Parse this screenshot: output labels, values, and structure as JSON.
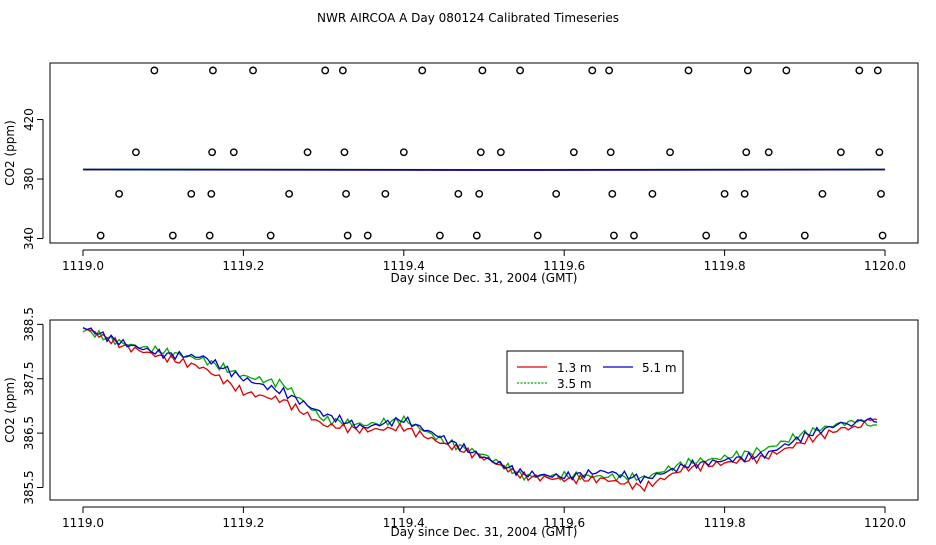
{
  "page_title": "NWR AIRCOA A  Day 080124  Calibrated Timeseries",
  "chart_data": [
    {
      "type": "scatter+line",
      "xlabel": "Day since Dec. 31, 2004 (GMT)",
      "ylabel": "CO2 (ppm)",
      "xlim": [
        1119.0,
        1120.0
      ],
      "xticks": [
        "1119.0",
        "1119.2",
        "1119.4",
        "1119.6",
        "1119.8",
        "1120.0"
      ],
      "yticks": [
        "340",
        "380",
        "420"
      ],
      "ylim": [
        337,
        458
      ],
      "points": [
        [
          1119.022,
          342
        ],
        [
          1119.045,
          370
        ],
        [
          1119.066,
          398
        ],
        [
          1119.089,
          453
        ],
        [
          1119.112,
          342
        ],
        [
          1119.135,
          370
        ],
        [
          1119.158,
          342
        ],
        [
          1119.16,
          370
        ],
        [
          1119.161,
          398
        ],
        [
          1119.162,
          453
        ],
        [
          1119.188,
          398
        ],
        [
          1119.212,
          453
        ],
        [
          1119.234,
          342
        ],
        [
          1119.257,
          370
        ],
        [
          1119.28,
          398
        ],
        [
          1119.302,
          453
        ],
        [
          1119.324,
          453
        ],
        [
          1119.326,
          398
        ],
        [
          1119.328,
          370
        ],
        [
          1119.33,
          342
        ],
        [
          1119.355,
          342
        ],
        [
          1119.377,
          370
        ],
        [
          1119.4,
          398
        ],
        [
          1119.423,
          453
        ],
        [
          1119.445,
          342
        ],
        [
          1119.468,
          370
        ],
        [
          1119.491,
          342
        ],
        [
          1119.494,
          370
        ],
        [
          1119.496,
          398
        ],
        [
          1119.498,
          453
        ],
        [
          1119.521,
          398
        ],
        [
          1119.545,
          453
        ],
        [
          1119.567,
          342
        ],
        [
          1119.59,
          370
        ],
        [
          1119.612,
          398
        ],
        [
          1119.635,
          453
        ],
        [
          1119.656,
          453
        ],
        [
          1119.658,
          398
        ],
        [
          1119.66,
          370
        ],
        [
          1119.662,
          342
        ],
        [
          1119.687,
          342
        ],
        [
          1119.71,
          370
        ],
        [
          1119.732,
          398
        ],
        [
          1119.755,
          453
        ],
        [
          1119.777,
          342
        ],
        [
          1119.8,
          370
        ],
        [
          1119.823,
          342
        ],
        [
          1119.825,
          370
        ],
        [
          1119.827,
          398
        ],
        [
          1119.829,
          453
        ],
        [
          1119.855,
          398
        ],
        [
          1119.877,
          453
        ],
        [
          1119.9,
          342
        ],
        [
          1119.922,
          370
        ],
        [
          1119.945,
          398
        ],
        [
          1119.968,
          453
        ],
        [
          1119.991,
          453
        ],
        [
          1119.993,
          398
        ],
        [
          1119.995,
          370
        ],
        [
          1119.997,
          342
        ]
      ],
      "series": [
        {
          "color": "#dd0000",
          "x": [
            1119.0,
            1119.5,
            1120.0
          ],
          "values": [
            386.3,
            386.0,
            386.3
          ]
        },
        {
          "color": "#00aa00",
          "x": [
            1119.0,
            1119.5,
            1120.0
          ],
          "values": [
            386.5,
            386.2,
            386.5
          ]
        },
        {
          "color": "#0000cc",
          "x": [
            1119.0,
            1119.5,
            1120.0
          ],
          "values": [
            386.4,
            386.1,
            386.4
          ]
        }
      ]
    },
    {
      "type": "line",
      "xlabel": "Day since Dec. 31, 2004 (GMT)",
      "ylabel": "CO2 (ppm)",
      "xlim": [
        1119.0,
        1120.0
      ],
      "xticks": [
        "1119.0",
        "1119.2",
        "1119.4",
        "1119.6",
        "1119.8",
        "1120.0"
      ],
      "yticks": [
        "385.5",
        "386.5",
        "387.5",
        "388.5"
      ],
      "ylim": [
        385.27,
        388.58
      ],
      "legend": {
        "placement": "top-right",
        "entries": [
          "1.3 m",
          "5.1 m",
          "3.5 m"
        ]
      },
      "x": [
        1119.0,
        1119.05,
        1119.1,
        1119.15,
        1119.2,
        1119.25,
        1119.3,
        1119.35,
        1119.4,
        1119.45,
        1119.5,
        1119.55,
        1119.6,
        1119.65,
        1119.7,
        1119.75,
        1119.8,
        1119.85,
        1119.9,
        1119.95,
        1119.99
      ],
      "series": [
        {
          "name": "1.3 m",
          "color": "#dd0000",
          "values": [
            388.45,
            388.1,
            387.9,
            387.7,
            387.25,
            387.1,
            386.65,
            386.55,
            386.6,
            386.3,
            386.05,
            385.7,
            385.65,
            385.65,
            385.5,
            385.85,
            385.95,
            386.05,
            386.35,
            386.6,
            386.75
          ]
        },
        {
          "name": "5.1 m",
          "color": "#0000cc",
          "values": [
            388.45,
            388.15,
            387.95,
            387.9,
            387.5,
            387.25,
            386.85,
            386.6,
            386.75,
            386.4,
            386.05,
            385.75,
            385.7,
            385.8,
            385.65,
            385.9,
            386.0,
            386.1,
            386.45,
            386.7,
            386.7
          ]
        },
        {
          "name": "3.5 m",
          "color": "#00aa00",
          "values": [
            388.4,
            388.15,
            388.0,
            387.85,
            387.55,
            387.4,
            386.75,
            386.65,
            386.75,
            386.35,
            386.1,
            385.7,
            385.72,
            385.7,
            385.68,
            385.95,
            386.05,
            386.2,
            386.5,
            386.7,
            386.65
          ]
        }
      ]
    }
  ]
}
